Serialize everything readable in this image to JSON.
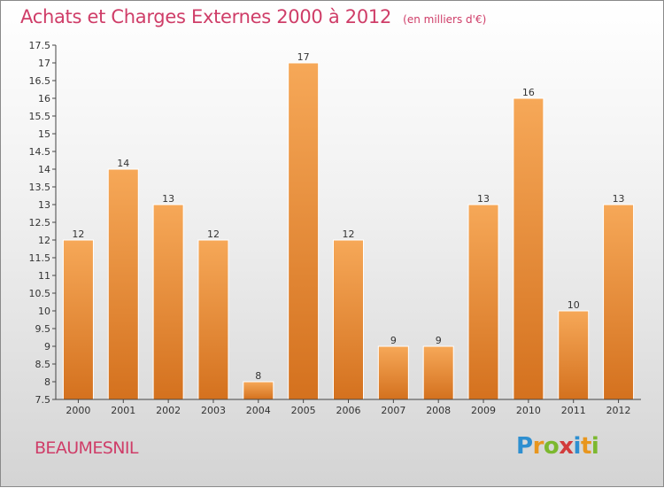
{
  "header": {
    "title": "Achats et Charges Externes 2000 à 2012",
    "unit": "(en milliers d'€)"
  },
  "footer": {
    "commune": "BEAUMESNIL",
    "brand_letters": [
      "P",
      "r",
      "o",
      "x",
      "i",
      "t",
      "i"
    ],
    "brand_colors": [
      "#2e8fd0",
      "#e8961e",
      "#7cb82f",
      "#d23c3c",
      "#2e8fd0",
      "#e8961e",
      "#7cb82f"
    ]
  },
  "colors": {
    "accent": "#cf3d68",
    "bar_light": "#f6a858",
    "bar_dark": "#d4711e"
  },
  "chart_data": {
    "type": "bar",
    "categories": [
      "2000",
      "2001",
      "2002",
      "2003",
      "2004",
      "2005",
      "2006",
      "2007",
      "2008",
      "2009",
      "2010",
      "2011",
      "2012"
    ],
    "values": [
      12,
      14,
      13,
      12,
      8,
      17,
      12,
      9,
      9,
      13,
      16,
      10,
      13
    ],
    "ylim": [
      7.5,
      17.5
    ],
    "yticks": [
      "7.5",
      "8",
      "8.5",
      "9",
      "9.5",
      "10",
      "10.5",
      "11",
      "11.5",
      "12",
      "12.5",
      "13",
      "13.5",
      "14",
      "14.5",
      "15",
      "15.5",
      "16",
      "16.5",
      "17",
      "17.5"
    ],
    "grid": false,
    "xlabel": "",
    "ylabel": ""
  }
}
